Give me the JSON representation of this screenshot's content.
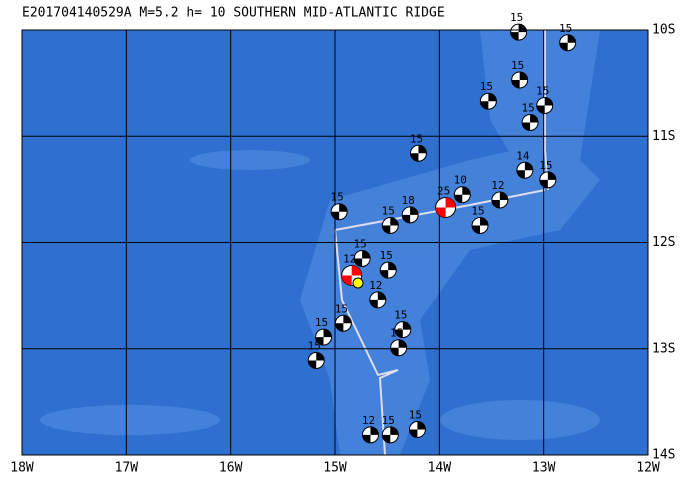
{
  "chart_data": {
    "type": "scatter",
    "title": "E201704140529A M=5.2 h= 10 SOUTHERN MID-ATLANTIC RIDGE",
    "xlim": [
      -18,
      -12
    ],
    "ylim": [
      -14,
      -10
    ],
    "xticks": [
      {
        "value": -18,
        "label": "18W"
      },
      {
        "value": -17,
        "label": "17W"
      },
      {
        "value": -16,
        "label": "16W"
      },
      {
        "value": -15,
        "label": "15W"
      },
      {
        "value": -14,
        "label": "14W"
      },
      {
        "value": -13,
        "label": "13W"
      },
      {
        "value": -12,
        "label": "12W"
      }
    ],
    "yticks": [
      {
        "value": -10,
        "label": "10S"
      },
      {
        "value": -11,
        "label": "11S"
      },
      {
        "value": -12,
        "label": "12S"
      },
      {
        "value": -13,
        "label": "13S"
      },
      {
        "value": -14,
        "label": "14S"
      }
    ],
    "grid": true,
    "x": [
      -12.77,
      -13.24,
      -13.53,
      -14.2,
      -14.96,
      -14.47,
      -13.94,
      -13.61,
      -13.18,
      -12.96,
      -14.74,
      -14.49,
      -14.84,
      -14.59,
      -14.92,
      -15.11,
      -15.18,
      -14.35,
      -14.39,
      -14.66,
      -14.47,
      -14.21,
      -13.23,
      -12.99,
      -13.13,
      -14.28,
      -13.78,
      -13.42
    ],
    "y": [
      -10.12,
      -10.02,
      -10.67,
      -11.16,
      -11.71,
      -11.84,
      -11.67,
      -11.84,
      -11.32,
      -11.41,
      -12.15,
      -12.26,
      -12.31,
      -12.54,
      -12.76,
      -12.89,
      -13.11,
      -12.82,
      -12.99,
      -13.81,
      -13.81,
      -13.76,
      -10.47,
      -10.71,
      -10.87,
      -11.74,
      -11.55,
      -11.6
    ],
    "labels": [
      "15",
      "15",
      "15",
      "15",
      "15",
      "15",
      "25",
      "15",
      "14",
      "15",
      "15",
      "15",
      "12",
      "12",
      "15",
      "15",
      "15",
      "15",
      "15",
      "12",
      "15",
      "15",
      "15",
      "15",
      "15",
      "18",
      "10",
      "12"
    ],
    "colors": [
      "#000000",
      "#000000",
      "#000000",
      "#000000",
      "#000000",
      "#000000",
      "#ff0000",
      "#000000",
      "#000000",
      "#000000",
      "#000000",
      "#000000",
      "#ff0000",
      "#000000",
      "#000000",
      "#000000",
      "#000000",
      "#000000",
      "#000000",
      "#000000",
      "#000000",
      "#000000",
      "#000000",
      "#000000",
      "#000000",
      "#000000",
      "#000000",
      "#000000"
    ]
  }
}
